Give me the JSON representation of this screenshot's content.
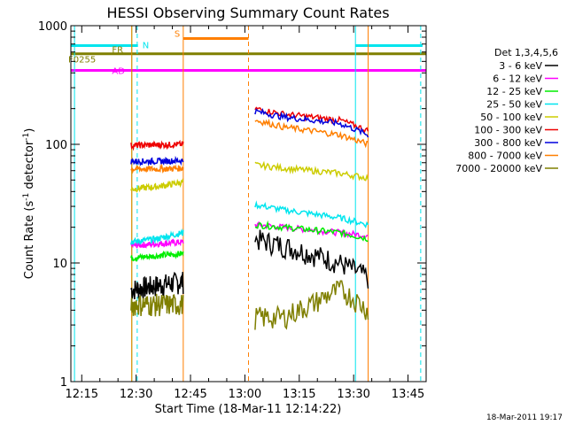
{
  "chart_data": {
    "type": "line",
    "title": "HESSI Observing Summary Count Rates",
    "xlabel": "Start Time (18-Mar-11 12:14:22)",
    "ylabel_main": "Count Rate (s",
    "ylabel_sup1": "-1",
    "ylabel_mid": " detector",
    "ylabel_sup2": "-1",
    "ylabel_end": ")",
    "y_scale": "log",
    "ylim": [
      1,
      1000
    ],
    "xlim_minutes": [
      12.0,
      110.0
    ],
    "x_ticks": [
      {
        "label": "12:15",
        "m": 15
      },
      {
        "label": "12:30",
        "m": 30
      },
      {
        "label": "12:45",
        "m": 45
      },
      {
        "label": "13:00",
        "m": 60
      },
      {
        "label": "13:15",
        "m": 75
      },
      {
        "label": "13:30",
        "m": 90
      },
      {
        "label": "13:45",
        "m": 105
      }
    ],
    "y_ticks": [
      {
        "label": "1",
        "v": 1
      },
      {
        "label": "10",
        "v": 10
      },
      {
        "label": "100",
        "v": 100
      },
      {
        "label": "1000",
        "v": 1000
      }
    ],
    "legend_title": "Det 1,3,4,5,6",
    "legend_position": "right",
    "footer_date": "18-Mar-2011 19:17",
    "flags": {
      "N_label": "N",
      "S_label": "S",
      "FR_label": "FR",
      "FR_value": 580,
      "F0255_label": "F0255",
      "AD_label": "AD",
      "AD_value": 420,
      "N_value": 680,
      "S_value": 780,
      "N_color": "#00e5ee",
      "S_color": "#ff7f00",
      "FR_color": "#7f7f00",
      "AD_color": "#ff00ff",
      "N_segments": [
        [
          12.0,
          30.5
        ],
        [
          90.5,
          109.0
        ]
      ],
      "S_segments": [
        [
          43.0,
          61.0
        ]
      ],
      "FR_segment": [
        12.0,
        110.0
      ],
      "AD_segment": [
        12.0,
        110.0
      ]
    },
    "vlines": [
      {
        "m": 13.0,
        "color": "#00e5ee",
        "style": "solid"
      },
      {
        "m": 30.3,
        "color": "#00e5ee",
        "style": "dashed"
      },
      {
        "m": 43.0,
        "color": "#ff7f00",
        "style": "solid"
      },
      {
        "m": 61.0,
        "color": "#ff7f00",
        "style": "dashed"
      },
      {
        "m": 90.5,
        "color": "#00e5ee",
        "style": "solid"
      },
      {
        "m": 108.5,
        "color": "#00e5ee",
        "style": "dashed"
      },
      {
        "m": 28.8,
        "color": "#00cc00",
        "style": "solid"
      },
      {
        "m": 28.8,
        "color": "#ff7f00",
        "style": "solid"
      },
      {
        "m": 94.0,
        "color": "#ff7f00",
        "style": "solid"
      }
    ],
    "segments": [
      [
        28.6,
        43.0
      ],
      [
        62.8,
        94.0
      ]
    ],
    "series": [
      {
        "name": "3 - 6 keV",
        "color": "#000000",
        "v1": [
          6.0,
          6.5,
          7.0
        ],
        "v2": [
          16,
          14,
          12,
          10,
          7.5
        ]
      },
      {
        "name": "6 - 12 keV",
        "color": "#ff00ff",
        "v1": [
          14,
          14.5,
          15
        ],
        "v2": [
          21,
          20,
          19,
          18,
          17
        ]
      },
      {
        "name": "12 - 25 keV",
        "color": "#00ee00",
        "v1": [
          11,
          11.5,
          12
        ],
        "v2": [
          21,
          20,
          19,
          18,
          16
        ]
      },
      {
        "name": "25 - 50 keV",
        "color": "#00e5ee",
        "v1": [
          15,
          16,
          18
        ],
        "v2": [
          31,
          28,
          26,
          24,
          21
        ]
      },
      {
        "name": "50 - 100 keV",
        "color": "#cccc00",
        "v1": [
          42,
          44,
          48
        ],
        "v2": [
          67,
          63,
          60,
          57,
          52
        ]
      },
      {
        "name": "100 - 300 keV",
        "color": "#ee0000",
        "v1": [
          98,
          99,
          100
        ],
        "v2": [
          200,
          180,
          170,
          160,
          130
        ]
      },
      {
        "name": "300 - 800 keV",
        "color": "#0000dd",
        "v1": [
          72,
          72,
          73
        ],
        "v2": [
          190,
          170,
          160,
          150,
          120
        ]
      },
      {
        "name": "800 - 7000 keV",
        "color": "#ff7f00",
        "v1": [
          62,
          62,
          63
        ],
        "v2": [
          160,
          140,
          130,
          120,
          100
        ]
      },
      {
        "name": "7000 - 20000 keV",
        "color": "#7f7f00",
        "v1": [
          4.5,
          4.5,
          4.5
        ],
        "v2": [
          3.5,
          3.5,
          4.5,
          6,
          4
        ]
      }
    ]
  }
}
